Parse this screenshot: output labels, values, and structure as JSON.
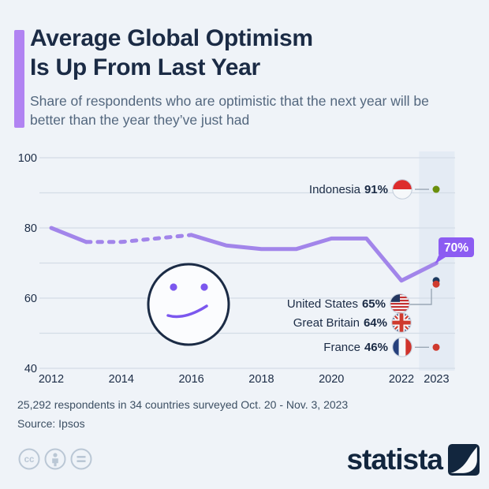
{
  "header": {
    "title_line1": "Average Global Optimism",
    "title_line2": "Is Up From Last Year",
    "subtitle": "Share of respondents who are optimistic that the next year will be better than the year they’ve just had"
  },
  "chart_data": {
    "type": "line",
    "title": "Average Global Optimism Is Up From Last Year",
    "x": [
      2012,
      2013,
      2014,
      2015,
      2016,
      2017,
      2018,
      2019,
      2020,
      2021,
      2022,
      2023
    ],
    "values": [
      80,
      76,
      76,
      77,
      78,
      75,
      74,
      74,
      77,
      77,
      65,
      70
    ],
    "dashed_range": [
      2013,
      2016
    ],
    "x_tick_years": [
      2012,
      2014,
      2016,
      2018,
      2020,
      2022,
      2023
    ],
    "x_tick_labels": [
      "2012",
      "2014",
      "2016",
      "2018",
      "2020",
      "2022",
      "2023"
    ],
    "y_ticks": [
      40,
      50,
      60,
      70,
      80,
      90,
      100
    ],
    "y_tick_labels_shown": [
      40,
      60,
      80,
      100
    ],
    "ylim": [
      40,
      100
    ],
    "highlight_year": 2023,
    "end_label": "70%",
    "line_color": "#a285ea",
    "callout_color": "#8c5cf2",
    "annotations": [
      {
        "label": "Indonesia",
        "value_label": "91%",
        "value": 91,
        "flag": "indonesia",
        "dot_color": "#6a8f0c",
        "connector": "dash"
      },
      {
        "label": "United States",
        "value_label": "65%",
        "value": 65,
        "flag": "united-states",
        "dot_color": "#1e3a5f",
        "connector": "elbow"
      },
      {
        "label": "Great Britain",
        "value_label": "64%",
        "value": 64,
        "flag": "great-britain",
        "dot_color": "#cf3a2e",
        "connector": "elbow"
      },
      {
        "label": "France",
        "value_label": "46%",
        "value": 46,
        "flag": "france",
        "dot_color": "#cf3a2e",
        "connector": "dash"
      }
    ]
  },
  "footer": {
    "note": "25,292 respondents in 34 countries surveyed Oct. 20 - Nov. 3, 2023",
    "source": "Source: Ipsos",
    "brand": "statista"
  },
  "colors": {
    "background": "#eff3f8",
    "grid": "#d3dce6",
    "band": "#e4ebf4",
    "text_dark": "#1b2b45",
    "text_sub": "#53677e",
    "connector": "#9aa7b5",
    "accent_bar": "#b183f2",
    "smiley": "#7b57ee"
  }
}
